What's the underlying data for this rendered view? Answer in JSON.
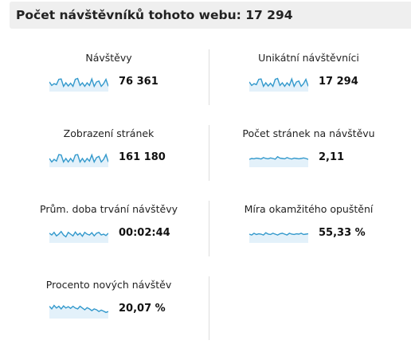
{
  "header": {
    "title": "Počet návštěvníků tohoto webu: 17 294"
  },
  "tiles": [
    {
      "label": "Návštěvy",
      "value": "76 361",
      "spark": [
        0.55,
        0.35,
        0.45,
        0.4,
        0.7,
        0.72,
        0.3,
        0.5,
        0.32,
        0.48,
        0.3,
        0.7,
        0.75,
        0.35,
        0.5,
        0.3,
        0.5,
        0.35,
        0.72,
        0.3,
        0.55,
        0.6,
        0.3,
        0.45,
        0.7,
        0.3
      ]
    },
    {
      "label": "Unikátní návštěvníci",
      "value": "17 294",
      "spark": [
        0.55,
        0.35,
        0.45,
        0.4,
        0.7,
        0.72,
        0.3,
        0.5,
        0.32,
        0.48,
        0.3,
        0.7,
        0.75,
        0.35,
        0.5,
        0.3,
        0.5,
        0.35,
        0.72,
        0.3,
        0.55,
        0.6,
        0.3,
        0.45,
        0.7,
        0.3
      ]
    },
    {
      "label": "Zobrazení stránek",
      "value": "161 180",
      "spark": [
        0.5,
        0.3,
        0.45,
        0.35,
        0.72,
        0.7,
        0.3,
        0.5,
        0.3,
        0.5,
        0.32,
        0.7,
        0.72,
        0.3,
        0.5,
        0.3,
        0.5,
        0.35,
        0.7,
        0.3,
        0.55,
        0.62,
        0.3,
        0.45,
        0.72,
        0.3
      ]
    },
    {
      "label": "Počet stránek na návštěvu",
      "value": "2,11",
      "spark": [
        0.45,
        0.5,
        0.48,
        0.52,
        0.5,
        0.47,
        0.55,
        0.5,
        0.48,
        0.53,
        0.5,
        0.46,
        0.6,
        0.52,
        0.5,
        0.48,
        0.55,
        0.5,
        0.47,
        0.52,
        0.5,
        0.48,
        0.5,
        0.53,
        0.5,
        0.45
      ]
    },
    {
      "label": "Prům. doba trvání návštěvy",
      "value": "00:02:44",
      "spark": [
        0.55,
        0.45,
        0.6,
        0.4,
        0.5,
        0.65,
        0.45,
        0.35,
        0.6,
        0.5,
        0.4,
        0.62,
        0.45,
        0.55,
        0.38,
        0.6,
        0.5,
        0.45,
        0.58,
        0.4,
        0.55,
        0.6,
        0.45,
        0.5,
        0.42,
        0.55
      ]
    },
    {
      "label": "Míra okamžitého opuštění",
      "value": "55,33 %",
      "spark": [
        0.5,
        0.45,
        0.55,
        0.48,
        0.52,
        0.5,
        0.45,
        0.58,
        0.5,
        0.48,
        0.55,
        0.5,
        0.45,
        0.52,
        0.55,
        0.5,
        0.45,
        0.55,
        0.5,
        0.48,
        0.52,
        0.5,
        0.55,
        0.48,
        0.5,
        0.52
      ]
    },
    {
      "label": "Procento nových návštěv",
      "value": "20,07 %",
      "spark": [
        0.7,
        0.55,
        0.75,
        0.6,
        0.7,
        0.55,
        0.72,
        0.6,
        0.68,
        0.58,
        0.7,
        0.6,
        0.55,
        0.7,
        0.6,
        0.5,
        0.62,
        0.55,
        0.45,
        0.55,
        0.5,
        0.4,
        0.48,
        0.42,
        0.35,
        0.4
      ]
    }
  ],
  "colors": {
    "spark_line": "#3399cc",
    "spark_fill": "#e3f1fa"
  }
}
